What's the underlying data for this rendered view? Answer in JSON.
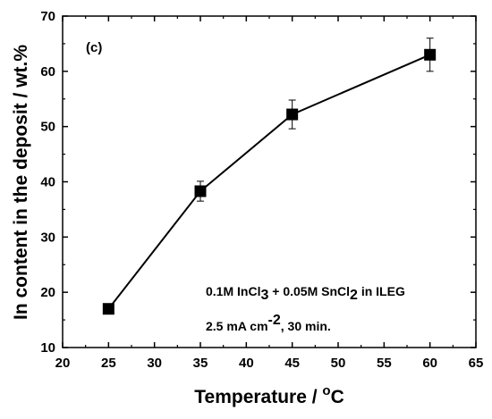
{
  "chart_data": {
    "type": "line",
    "panel_label": "(c)",
    "xlabel": {
      "main": "Temperature / ",
      "sup": "o",
      "unit": "C"
    },
    "ylabel": "In content in the deposit / wt.%",
    "xlim": [
      20,
      65
    ],
    "ylim": [
      10,
      70
    ],
    "xticks": [
      20,
      25,
      30,
      35,
      40,
      45,
      50,
      55,
      60,
      65
    ],
    "yticks": [
      10,
      20,
      30,
      40,
      50,
      60,
      70
    ],
    "series": [
      {
        "x": [
          25,
          35,
          45,
          60
        ],
        "y": [
          17.0,
          38.3,
          52.2,
          63.0
        ],
        "error": [
          0,
          1.8,
          2.6,
          3.0
        ],
        "marker": "square",
        "color": "#000000"
      }
    ],
    "annotations": [
      {
        "parts": [
          {
            "t": "0.1M InCl",
            "s": ""
          },
          {
            "t": "3",
            "s": "sub"
          },
          {
            "t": " + 0.05M SnCl",
            "s": ""
          },
          {
            "t": "2",
            "s": "sub"
          },
          {
            "t": " in ILEG",
            "s": ""
          }
        ]
      },
      {
        "parts": [
          {
            "t": "2.5 mA cm",
            "s": ""
          },
          {
            "t": "-2",
            "s": "sup"
          },
          {
            "t": ", 30 min.",
            "s": ""
          }
        ]
      }
    ],
    "grid": false,
    "legend": "none"
  }
}
